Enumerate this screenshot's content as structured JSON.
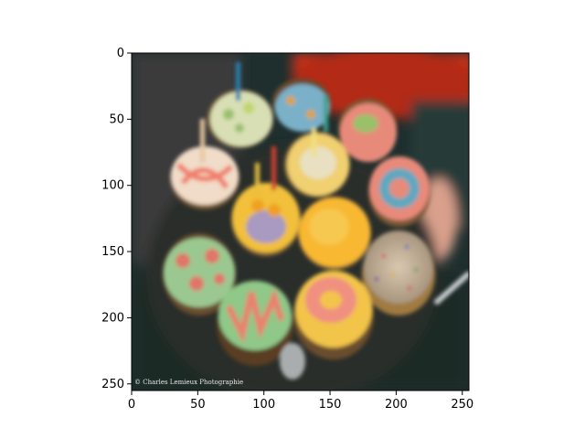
{
  "figure": {
    "type": "image-with-pixel-axes",
    "xlim": [
      0,
      255
    ],
    "ylim": [
      255,
      0
    ],
    "x_ticks": [
      "0",
      "50",
      "100",
      "150",
      "200",
      "250"
    ],
    "y_ticks": [
      "0",
      "50",
      "100",
      "150",
      "200",
      "250"
    ],
    "grid": false
  },
  "photo": {
    "subject": "decorated cupcakes with candles",
    "watermark": "© Charles Lemieux Photographie"
  },
  "colors": {
    "axis": "#000000",
    "background": "#ffffff"
  }
}
